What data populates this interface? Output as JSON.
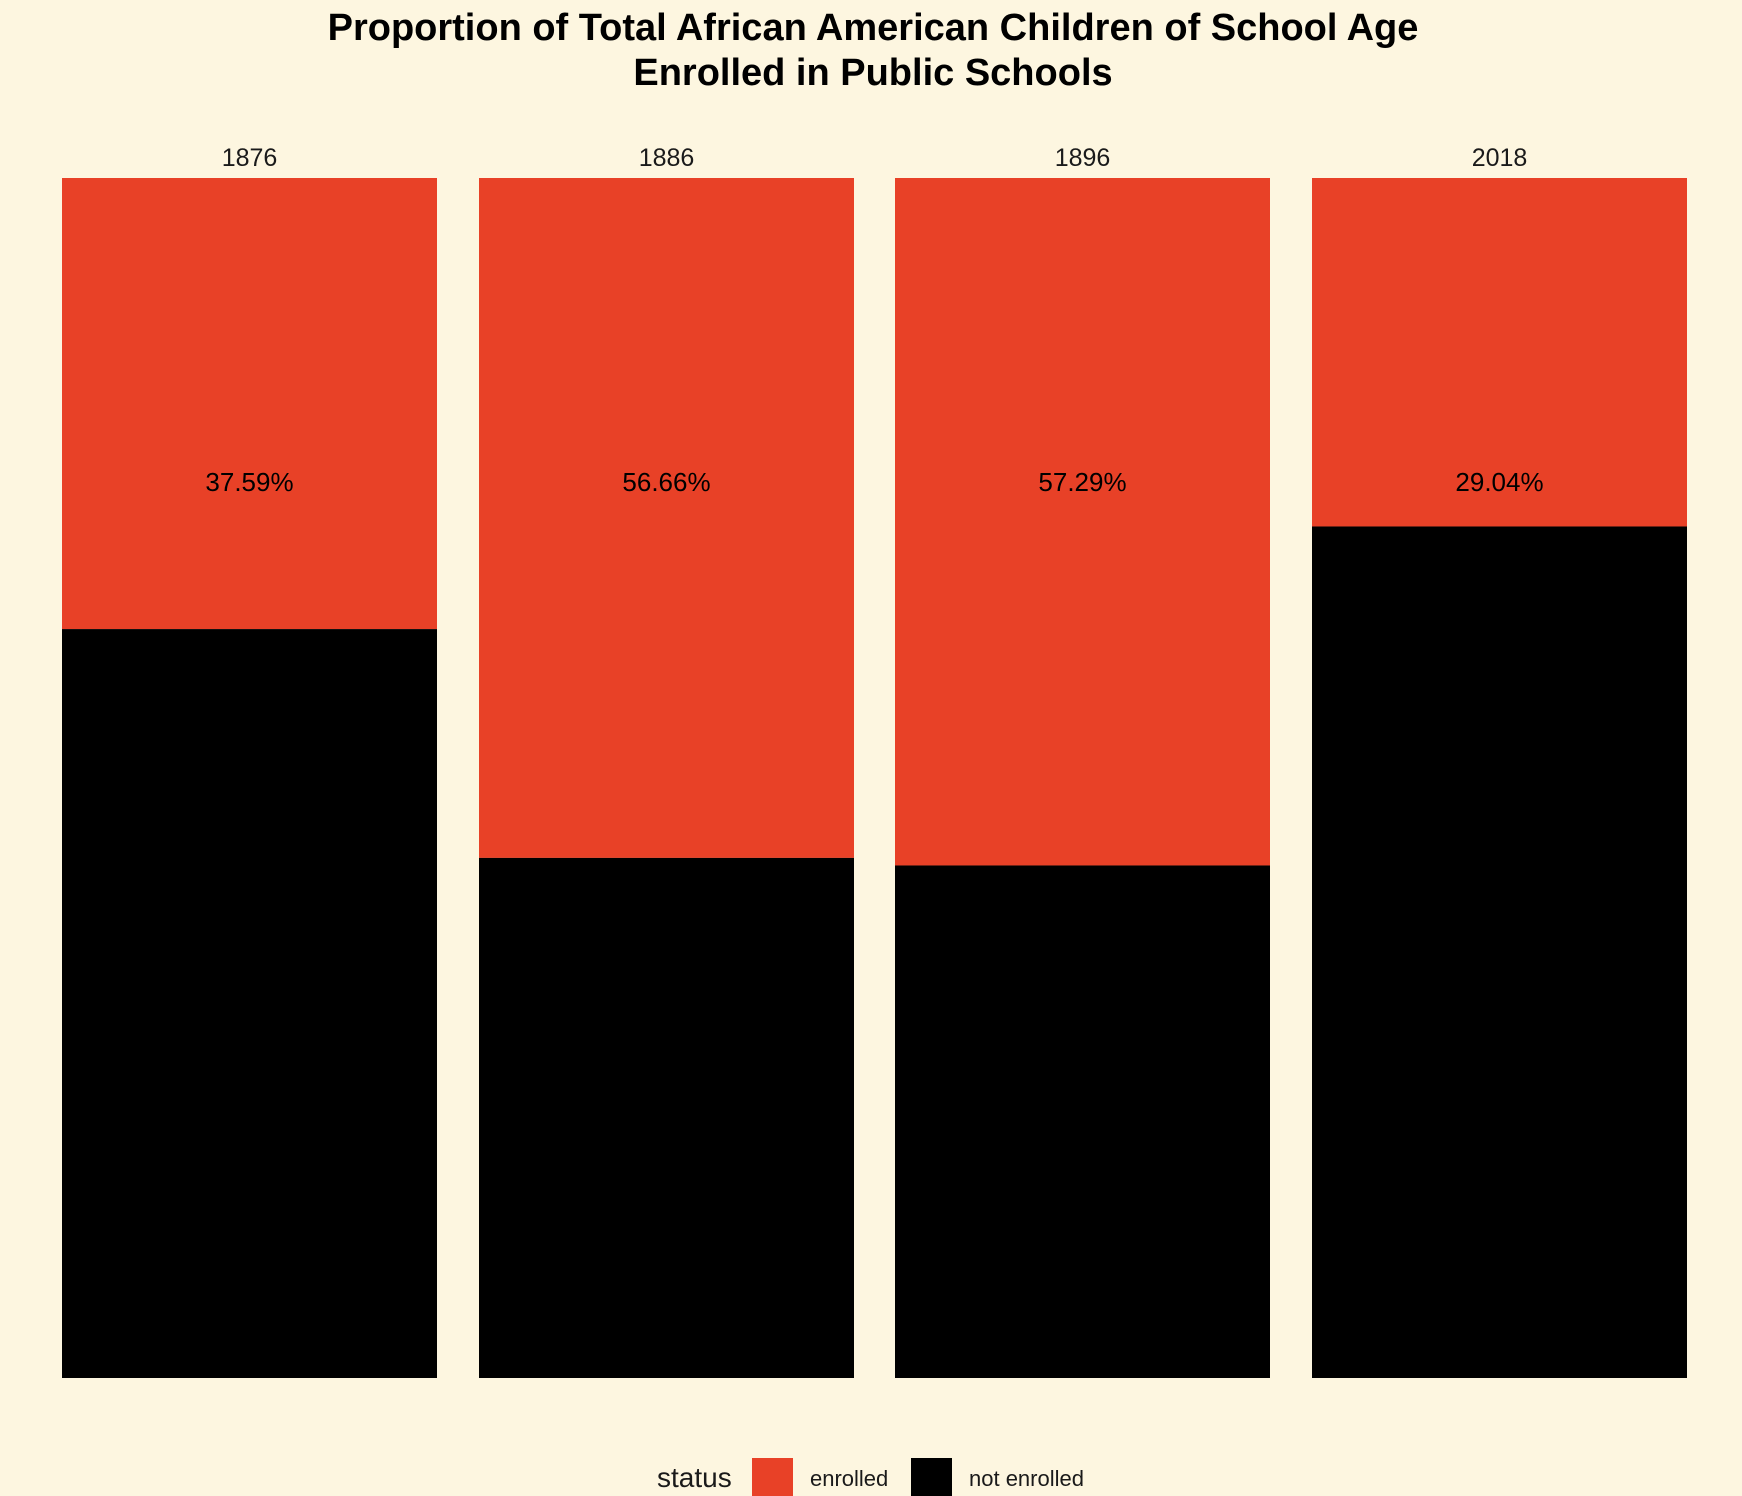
{
  "chart_data": {
    "type": "bar",
    "stacked": true,
    "normalized": true,
    "title": [
      "Proportion of Total African American Children of School Age",
      "Enrolled in Public Schools"
    ],
    "categories": [
      "1876",
      "1886",
      "1896",
      "2018"
    ],
    "series": [
      {
        "name": "enrolled",
        "color": "#e84127",
        "values": [
          37.59,
          56.66,
          57.29,
          29.04
        ]
      },
      {
        "name": "not enrolled",
        "color": "#000000",
        "values": [
          62.41,
          43.34,
          42.71,
          70.96
        ]
      }
    ],
    "data_labels": [
      "37.59%",
      "56.66%",
      "57.29%",
      "29.04%"
    ],
    "legend": {
      "title": "status",
      "position": "bottom",
      "items": [
        {
          "label": "enrolled",
          "color": "#e84127"
        },
        {
          "label": "not enrolled",
          "color": "#000000"
        }
      ]
    },
    "background": "#fdf6e0",
    "grid": false,
    "ylim": [
      0,
      100
    ]
  }
}
